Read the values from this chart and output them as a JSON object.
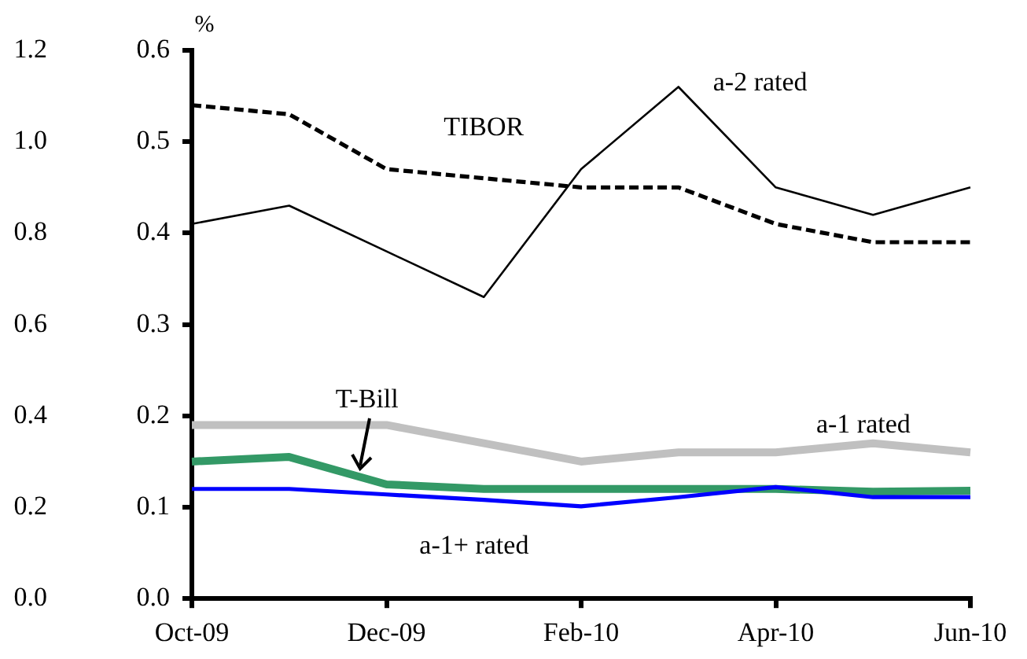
{
  "chart_data": {
    "type": "line",
    "ylabel": "%",
    "categories": [
      "Oct-09",
      null,
      "Dec-09",
      null,
      "Feb-10",
      null,
      "Apr-10",
      null,
      "Jun-10"
    ],
    "series": [
      {
        "name": "a-2 rated",
        "color": "#000000",
        "values": [
          0.41,
          0.43,
          0.38,
          0.33,
          0.47,
          0.56,
          0.45,
          0.42,
          0.45
        ]
      },
      {
        "name": "TIBOR",
        "color": "#000000",
        "line_style": "dashed",
        "values": [
          0.54,
          0.53,
          0.47,
          0.46,
          0.45,
          0.45,
          0.41,
          0.39,
          0.39
        ]
      },
      {
        "name": "a-1 rated",
        "color": "#c0c0c0",
        "values": [
          0.19,
          0.19,
          0.19,
          0.17,
          0.15,
          0.16,
          0.16,
          0.17,
          0.16
        ]
      },
      {
        "name": "T-Bill",
        "color": "#339966",
        "values": [
          0.15,
          0.155,
          0.125,
          0.12,
          0.12,
          0.12,
          0.12,
          0.117,
          0.118
        ]
      },
      {
        "name": "a-1+ rated",
        "color": "#0000ff",
        "values": [
          0.12,
          0.12,
          0.114,
          0.108,
          0.101,
          0.111,
          0.122,
          0.111,
          0.111
        ]
      }
    ],
    "ylim": [
      0,
      0.6
    ],
    "yticks": [
      {
        "value": 0,
        "label": "0.0"
      },
      0.1,
      0.2,
      0.3,
      0.4,
      0.5,
      0.6
    ],
    "y2lim": [
      0,
      1.2
    ],
    "y2ticks": [
      {
        "value": 0,
        "label": "0.0"
      },
      0.2,
      0.4,
      0.6,
      0.8,
      {
        "value": 1,
        "label": "1.0"
      },
      1.2
    ],
    "grid": false,
    "legend": false,
    "marker": "none",
    "line_style": "solid"
  }
}
